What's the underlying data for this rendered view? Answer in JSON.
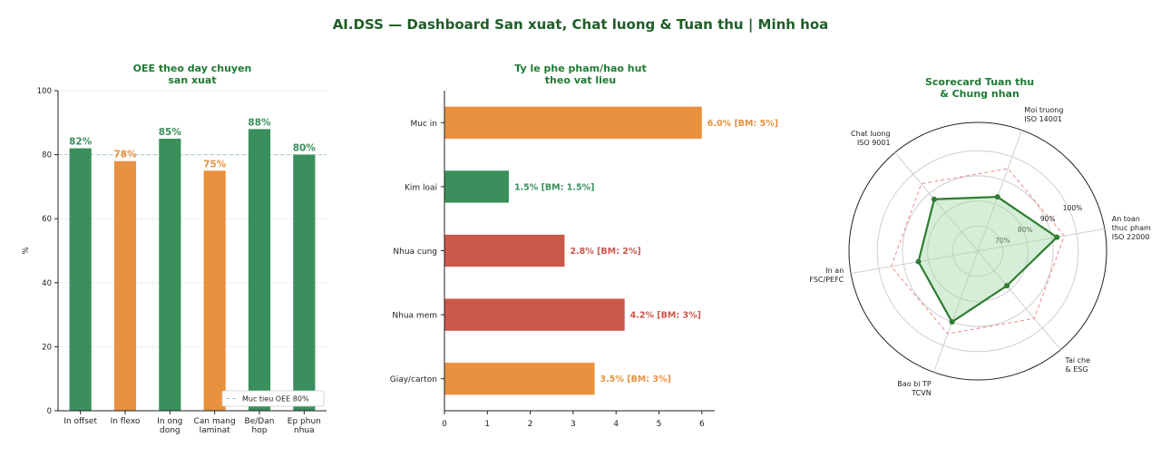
{
  "page": {
    "title": "AI.DSS — Dashboard San xuat, Chat luong & Tuan thu  |  Minh hoa"
  },
  "colors": {
    "green": "#3a8f5c",
    "orange": "#e8913f",
    "red": "#c9574a",
    "title_green": "#1e7a33",
    "radar_line": "#2e7d32",
    "radar_fill": "#a5d6a7",
    "target_dash": "#f08a8a"
  },
  "chart_data": [
    {
      "type": "bar",
      "title": "OEE theo day chuyen\nsan xuat",
      "categories": [
        "In offset",
        "In flexo",
        "In ong\ndong",
        "Can mang\nlaminat",
        "Be/Dan\nhop",
        "Ep phun\nnhua"
      ],
      "values": [
        82,
        78,
        85,
        75,
        88,
        80
      ],
      "labels": [
        "82%",
        "78%",
        "85%",
        "75%",
        "88%",
        "80%"
      ],
      "bar_colors": [
        "green",
        "orange",
        "green",
        "orange",
        "green",
        "green"
      ],
      "ylabel": "%",
      "xlabel": "",
      "ylim": [
        0,
        100
      ],
      "yticks": [
        0,
        20,
        40,
        60,
        80,
        100
      ],
      "target": 80,
      "legend": "Muc tieu OEE 80%",
      "legend_position": "bottom-right",
      "grid": true
    },
    {
      "type": "bar",
      "orientation": "horizontal",
      "title": "Ty le phe pham/hao hut\ntheo vat lieu",
      "categories": [
        "Muc in",
        "Kim loai",
        "Nhua cung",
        "Nhua mem",
        "Giay/carton"
      ],
      "values": [
        6.0,
        1.5,
        2.8,
        4.2,
        3.5
      ],
      "labels": [
        "6.0%  [BM: 5%]",
        "1.5%  [BM: 1.5%]",
        "2.8%  [BM: 2%]",
        "4.2%  [BM: 3%]",
        "3.5%  [BM: 3%]"
      ],
      "bar_colors": [
        "orange",
        "green",
        "red",
        "red",
        "orange"
      ],
      "xlim": [
        0,
        6.3
      ],
      "xticks": [
        0,
        1,
        2,
        3,
        4,
        5,
        6
      ],
      "grid": false
    },
    {
      "type": "radar",
      "title": "Scorecard Tuan thu\n& Chung nhan",
      "axes": [
        "An toan\nthuc pham\nISO 22000",
        "Moi truong\nISO 14001",
        "Chat luong\nISO 9001",
        "In an\nFSC/PEFC",
        "Bao bi TP\nTCVN",
        "Tai che\n& ESG"
      ],
      "values": [
        92,
        83,
        87,
        84,
        90,
        78
      ],
      "target": 95,
      "rlim": [
        60,
        100
      ],
      "rticks": [
        70,
        80,
        90,
        100
      ],
      "rtick_labels": [
        "70%",
        "80%",
        "90%",
        "100%"
      ]
    }
  ]
}
